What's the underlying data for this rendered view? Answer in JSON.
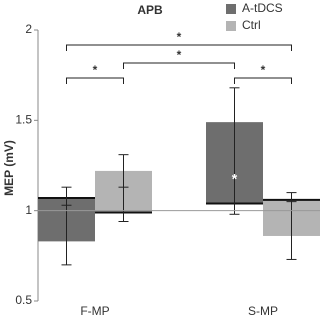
{
  "chart_data": {
    "type": "bar",
    "title": "APB",
    "y_label": "MEP (mV)",
    "categories": [
      "F-MP",
      "S-MP"
    ],
    "baseline": 1,
    "ylim": [
      0.5,
      2
    ],
    "yticks": [
      0.5,
      1,
      {
        "value": 1.5,
        "label": "1.5"
      },
      2
    ],
    "legend": "top-right",
    "series": [
      {
        "name": "A-tDCS",
        "color": "#6e6e6e",
        "box_low": [
          0.83,
          1.04
        ],
        "box_high": [
          1.07,
          1.49
        ],
        "line": [
          1.07,
          1.04
        ],
        "err_low": [
          0.7,
          0.98
        ],
        "err_high": [
          1.13,
          1.68
        ],
        "marker": [
          1.03,
          1.17
        ]
      },
      {
        "name": "Ctrl",
        "color": "#b4b4b4",
        "box_low": [
          0.99,
          0.86
        ],
        "box_high": [
          1.22,
          1.06
        ],
        "line": [
          0.99,
          1.06
        ],
        "err_low": [
          0.94,
          0.73
        ],
        "err_high": [
          1.31,
          1.1
        ],
        "marker": [
          1.13,
          1.05
        ]
      }
    ],
    "annotations": [
      "*",
      "*",
      "*",
      "*",
      "*"
    ]
  }
}
